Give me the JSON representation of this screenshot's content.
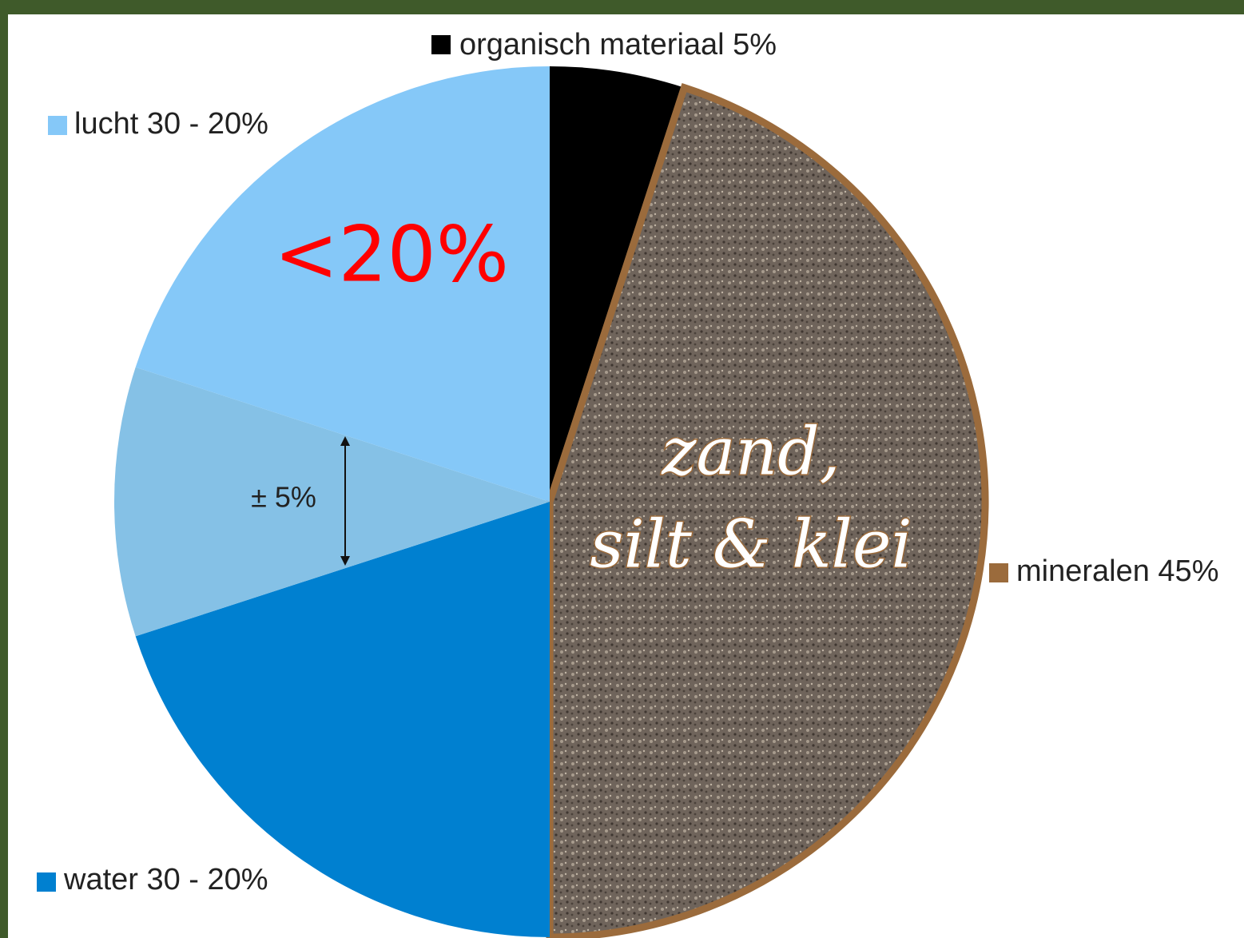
{
  "chart_data": {
    "type": "pie",
    "categories": [
      "organisch materiaal 5%",
      "mineralen 45%",
      "water 30 - 20%",
      null,
      "lucht 30 - 20%"
    ],
    "values": [
      5,
      45,
      20,
      10,
      20
    ],
    "colors": [
      "#000000",
      "#9b6b3c",
      "#0080d0",
      "#85c1e6",
      "#85c8f8"
    ],
    "annotations": [
      "<20%",
      "zand,",
      "silt & klei",
      "± 5%"
    ]
  }
}
